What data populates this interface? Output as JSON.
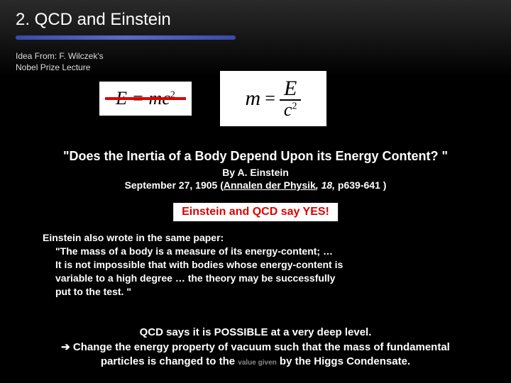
{
  "slide": {
    "title": "2. QCD and Einstein",
    "attribution_line1": "Idea From: F. Wilczek's",
    "attribution_line2": "Nobel Prize Lecture",
    "equation1": {
      "text": "E = mc",
      "superscript": "2",
      "strikethrough_color": "#d00000",
      "bg": "#ffffff"
    },
    "equation2": {
      "lhs": "m",
      "numerator": "E",
      "denominator_base": "c",
      "denominator_sup": "2",
      "bg": "#ffffff"
    },
    "question": "\"Does the Inertia of a Body Depend Upon its Energy Content? \"",
    "byline": "By A. Einstein",
    "citation_date": "September 27, 1905 (",
    "citation_journal": "Annalen der Physik",
    "citation_vol": ", 18,",
    "citation_pages": " p639-641 )",
    "yes_label": "Einstein and QCD say YES!",
    "paragraph": {
      "line1": "Einstein also wrote in the same paper:",
      "line2": "\"The mass of a body is a measure of its energy-content; …",
      "line3": "It is not impossible that with bodies whose energy-content is",
      "line4": "variable to a high degree … the theory may be successfully",
      "line5": "put to the test. \""
    },
    "conclusion": {
      "line1": "QCD says it is POSSIBLE at a very deep level.",
      "arrow": "➔",
      "line2": " Change the energy property of vacuum such that the mass of fundamental",
      "line3_a": "particles is changed to the ",
      "line3_small": "value given",
      "line3_b": " by the Higgs Condensate."
    },
    "colors": {
      "background": "#000000",
      "title_underline": "#4a5ab8",
      "highlight_bg": "#ffffff",
      "highlight_text": "#d00000",
      "text": "#ffffff"
    }
  }
}
